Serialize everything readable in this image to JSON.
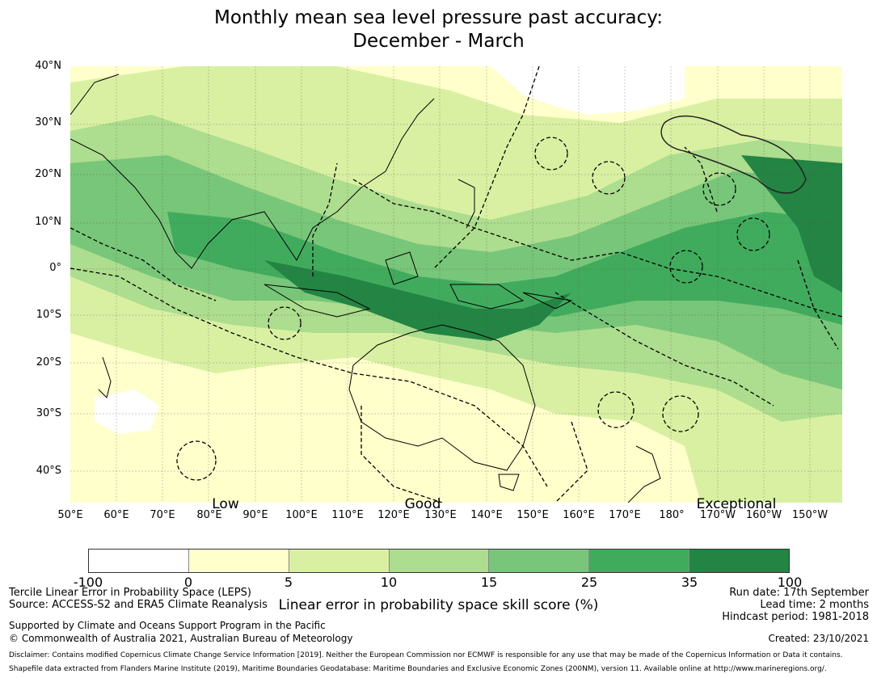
{
  "title_line1": "Monthly mean sea level pressure past accuracy:",
  "title_line2": "December - March",
  "map": {
    "lat_labels": [
      "40°N",
      "30°N",
      "20°N",
      "10°N",
      "0°",
      "10°S",
      "20°S",
      "30°S",
      "40°S"
    ],
    "lon_labels": [
      "50°E",
      "60°E",
      "70°E",
      "80°E",
      "90°E",
      "100°E",
      "110°E",
      "120°E",
      "130°E",
      "140°E",
      "150°E",
      "160°E",
      "170°E",
      "180°",
      "170°W",
      "160°W",
      "150°W"
    ],
    "category_labels": [
      "Low",
      "Good",
      "Exceptional"
    ]
  },
  "colorbar": {
    "ticks": [
      "-100",
      "0",
      "5",
      "10",
      "15",
      "25",
      "35",
      "100"
    ],
    "colors": [
      "#ffffff",
      "#ffffcc",
      "#d9f0a3",
      "#addd8e",
      "#78c679",
      "#41ab5d",
      "#238443"
    ],
    "label": "Linear error in probability space skill score (%)"
  },
  "info": {
    "method": "Tercile Linear Error in Probability Space (LEPS)",
    "source": "Source: ACCESS-S2 and ERA5 Climate Reanalysis",
    "supported": "Supported by Climate and Oceans Support Program in the Pacific",
    "copyright": "© Commonwealth of Australia 2021, Australian Bureau of Meteorology",
    "run_date": "Run date: 17th September",
    "lead_time": "Lead time: 2 months",
    "hindcast": "Hindcast period: 1981-2018",
    "created": "Created: 23/10/2021",
    "disclaimer": "Disclaimer: Contains modified Copernicus Climate Change Service Information [2019]. Neither the European Commission nor ECMWF is responsible for any use that may be made of the Copernicus Information or Data it contains.",
    "shapefile": "Shapefile data extracted from Flanders Marine Institute (2019), Maritime Boundaries Geodatabase: Maritime Boundaries and Exclusive Economic Zones (200NM), version 11. Available online at http://www.marineregions.org/."
  }
}
